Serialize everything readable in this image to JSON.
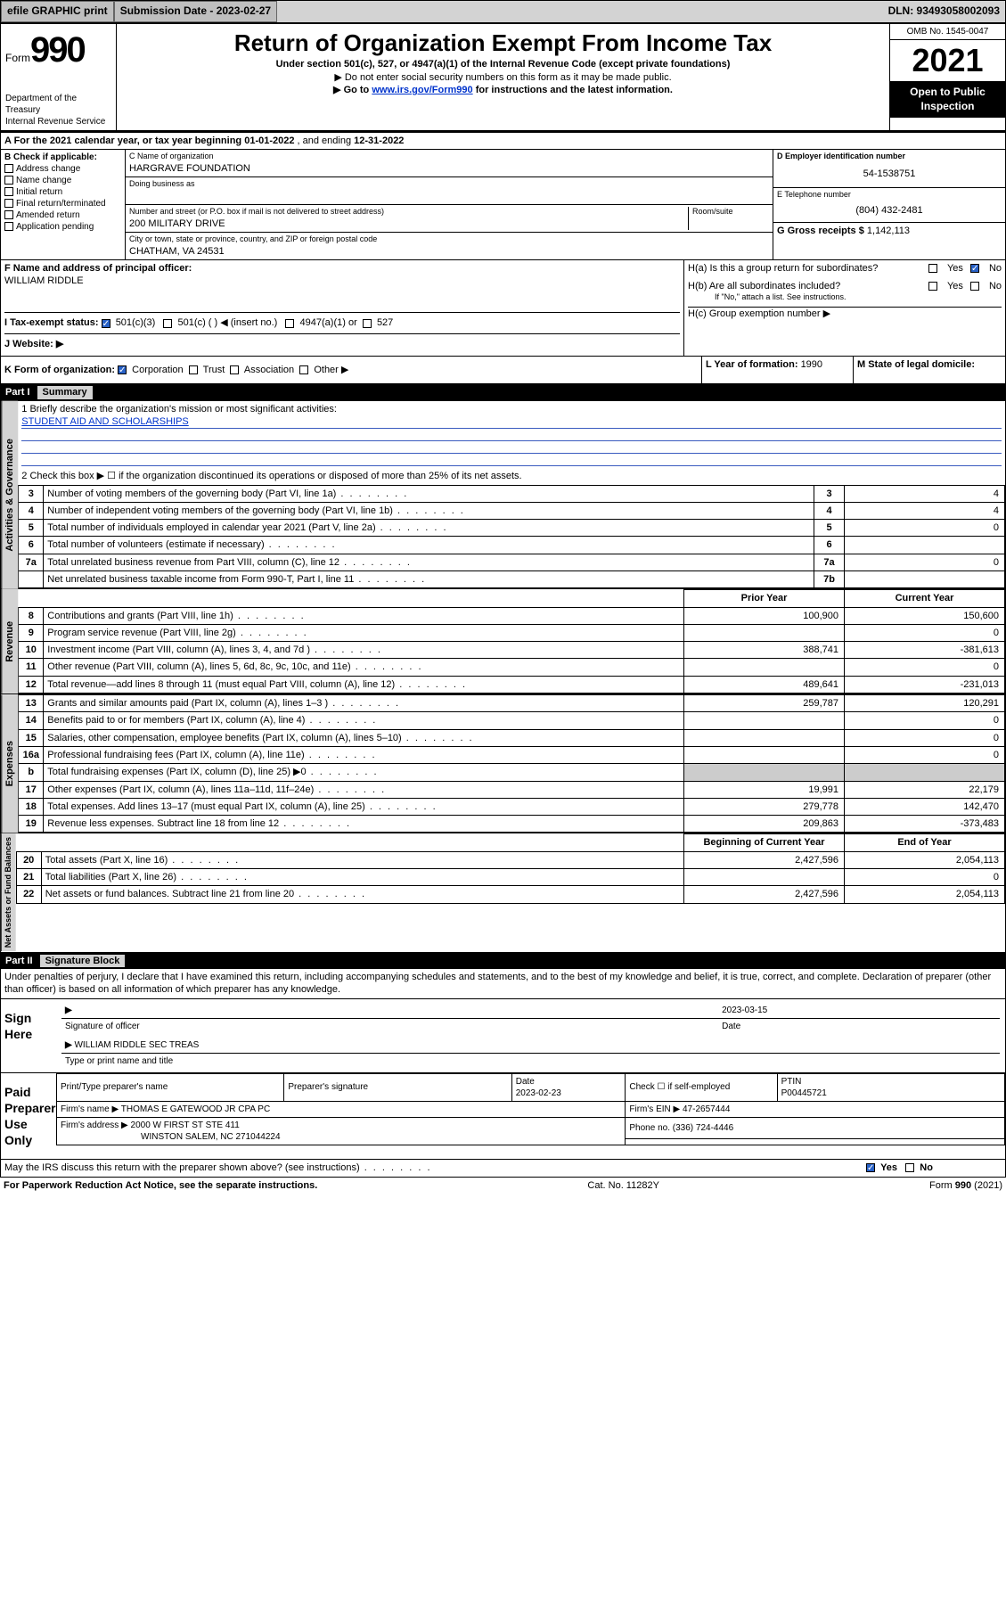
{
  "topbar": {
    "efile": "efile GRAPHIC print",
    "sub_label": "Submission Date - 2023-02-27",
    "dln": "DLN: 93493058002093"
  },
  "header": {
    "form_word": "Form",
    "form_num": "990",
    "dept": "Department of the Treasury",
    "irs": "Internal Revenue Service",
    "title": "Return of Organization Exempt From Income Tax",
    "line1": "Under section 501(c), 527, or 4947(a)(1) of the Internal Revenue Code (except private foundations)",
    "line2": "▶ Do not enter social security numbers on this form as it may be made public.",
    "line3a": "▶ Go to ",
    "line3_link": "www.irs.gov/Form990",
    "line3b": " for instructions and the latest information.",
    "omb": "OMB No. 1545-0047",
    "year": "2021",
    "open": "Open to Public Inspection"
  },
  "period": {
    "text_a": "A For the 2021 calendar year, or tax year beginning ",
    "begin": "01-01-2022",
    "mid": " , and ending ",
    "end": "12-31-2022"
  },
  "boxB": {
    "label": "B Check if applicable:",
    "opts": [
      "Address change",
      "Name change",
      "Initial return",
      "Final return/terminated",
      "Amended return",
      "Application pending"
    ]
  },
  "boxC": {
    "name_label": "C Name of organization",
    "name": "HARGRAVE FOUNDATION",
    "dba_label": "Doing business as",
    "addr_label": "Number and street (or P.O. box if mail is not delivered to street address)",
    "room_label": "Room/suite",
    "addr": "200 MILITARY DRIVE",
    "city_label": "City or town, state or province, country, and ZIP or foreign postal code",
    "city": "CHATHAM, VA  24531"
  },
  "boxD": {
    "label": "D Employer identification number",
    "val": "54-1538751"
  },
  "boxE": {
    "label": "E Telephone number",
    "val": "(804) 432-2481"
  },
  "boxG": {
    "label": "G Gross receipts $",
    "val": "1,142,113"
  },
  "boxF": {
    "label": "F  Name and address of principal officer:",
    "name": "WILLIAM RIDDLE"
  },
  "boxH": {
    "ha": "H(a)  Is this a group return for subordinates?",
    "hb": "H(b)  Are all subordinates included?",
    "hb_note": "If \"No,\" attach a list. See instructions.",
    "hc": "H(c)  Group exemption number ▶",
    "yes": "Yes",
    "no": "No"
  },
  "boxI": {
    "label": "I    Tax-exempt status:",
    "o1": "501(c)(3)",
    "o2": "501(c) (  ) ◀ (insert no.)",
    "o3": "4947(a)(1) or",
    "o4": "527"
  },
  "boxJ": {
    "label": "J    Website: ▶"
  },
  "boxK": {
    "label": "K Form of organization:",
    "o1": "Corporation",
    "o2": "Trust",
    "o3": "Association",
    "o4": "Other ▶"
  },
  "boxL": {
    "label": "L Year of formation: ",
    "val": "1990"
  },
  "boxM": {
    "label": "M State of legal domicile:"
  },
  "part1": {
    "hdr_part": "Part I",
    "hdr_title": "Summary",
    "tab_ag": "Activities & Governance",
    "tab_rev": "Revenue",
    "tab_exp": "Expenses",
    "tab_na": "Net Assets or Fund Balances",
    "q1": "1   Briefly describe the organization's mission or most significant activities:",
    "q1_ans": "STUDENT AID AND SCHOLARSHIPS",
    "q2": "2   Check this box ▶ ☐  if the organization discontinued its operations or disposed of more than 25% of its net assets.",
    "rows_gov": [
      {
        "n": "3",
        "txt": "Number of voting members of the governing body (Part VI, line 1a)",
        "box": "3",
        "val": "4"
      },
      {
        "n": "4",
        "txt": "Number of independent voting members of the governing body (Part VI, line 1b)",
        "box": "4",
        "val": "4"
      },
      {
        "n": "5",
        "txt": "Total number of individuals employed in calendar year 2021 (Part V, line 2a)",
        "box": "5",
        "val": "0"
      },
      {
        "n": "6",
        "txt": "Total number of volunteers (estimate if necessary)",
        "box": "6",
        "val": ""
      },
      {
        "n": "7a",
        "txt": "Total unrelated business revenue from Part VIII, column (C), line 12",
        "box": "7a",
        "val": "0"
      },
      {
        "n": "",
        "txt": "Net unrelated business taxable income from Form 990-T, Part I, line 11",
        "box": "7b",
        "val": ""
      }
    ],
    "col_prior": "Prior Year",
    "col_curr": "Current Year",
    "rows_rev": [
      {
        "n": "8",
        "txt": "Contributions and grants (Part VIII, line 1h)",
        "p": "100,900",
        "c": "150,600"
      },
      {
        "n": "9",
        "txt": "Program service revenue (Part VIII, line 2g)",
        "p": "",
        "c": "0"
      },
      {
        "n": "10",
        "txt": "Investment income (Part VIII, column (A), lines 3, 4, and 7d )",
        "p": "388,741",
        "c": "-381,613"
      },
      {
        "n": "11",
        "txt": "Other revenue (Part VIII, column (A), lines 5, 6d, 8c, 9c, 10c, and 11e)",
        "p": "",
        "c": "0"
      },
      {
        "n": "12",
        "txt": "Total revenue—add lines 8 through 11 (must equal Part VIII, column (A), line 12)",
        "p": "489,641",
        "c": "-231,013"
      }
    ],
    "rows_exp": [
      {
        "n": "13",
        "txt": "Grants and similar amounts paid (Part IX, column (A), lines 1–3 )",
        "p": "259,787",
        "c": "120,291"
      },
      {
        "n": "14",
        "txt": "Benefits paid to or for members (Part IX, column (A), line 4)",
        "p": "",
        "c": "0"
      },
      {
        "n": "15",
        "txt": "Salaries, other compensation, employee benefits (Part IX, column (A), lines 5–10)",
        "p": "",
        "c": "0"
      },
      {
        "n": "16a",
        "txt": "Professional fundraising fees (Part IX, column (A), line 11e)",
        "p": "",
        "c": "0"
      },
      {
        "n": "b",
        "txt": "Total fundraising expenses (Part IX, column (D), line 25) ▶0",
        "p": "shade",
        "c": "shade"
      },
      {
        "n": "17",
        "txt": "Other expenses (Part IX, column (A), lines 11a–11d, 11f–24e)",
        "p": "19,991",
        "c": "22,179"
      },
      {
        "n": "18",
        "txt": "Total expenses. Add lines 13–17 (must equal Part IX, column (A), line 25)",
        "p": "279,778",
        "c": "142,470"
      },
      {
        "n": "19",
        "txt": "Revenue less expenses. Subtract line 18 from line 12",
        "p": "209,863",
        "c": "-373,483"
      }
    ],
    "col_boy": "Beginning of Current Year",
    "col_eoy": "End of Year",
    "rows_na": [
      {
        "n": "20",
        "txt": "Total assets (Part X, line 16)",
        "p": "2,427,596",
        "c": "2,054,113"
      },
      {
        "n": "21",
        "txt": "Total liabilities (Part X, line 26)",
        "p": "",
        "c": "0"
      },
      {
        "n": "22",
        "txt": "Net assets or fund balances. Subtract line 21 from line 20",
        "p": "2,427,596",
        "c": "2,054,113"
      }
    ]
  },
  "part2": {
    "hdr_part": "Part II",
    "hdr_title": "Signature Block",
    "decl": "Under penalties of perjury, I declare that I have examined this return, including accompanying schedules and statements, and to the best of my knowledge and belief, it is true, correct, and complete. Declaration of preparer (other than officer) is based on all information of which preparer has any knowledge.",
    "sign_here": "Sign Here",
    "sig_officer": "Signature of officer",
    "sig_date": "2023-03-15",
    "date_label": "Date",
    "officer_name": "WILLIAM RIDDLE  SEC TREAS",
    "type_name": "Type or print name and title",
    "paid": "Paid Preparer Use Only",
    "pp_name_label": "Print/Type preparer's name",
    "pp_sig_label": "Preparer's signature",
    "pp_date_label": "Date",
    "pp_date": "2023-02-23",
    "pp_check": "Check ☐ if self-employed",
    "ptin_label": "PTIN",
    "ptin": "P00445721",
    "firm_name_label": "Firm's name    ▶",
    "firm_name": "THOMAS E GATEWOOD JR CPA PC",
    "firm_ein_label": "Firm's EIN ▶",
    "firm_ein": "47-2657444",
    "firm_addr_label": "Firm's address ▶",
    "firm_addr1": "2000 W FIRST ST STE 411",
    "firm_addr2": "WINSTON SALEM, NC  271044224",
    "phone_label": "Phone no.",
    "phone": "(336) 724-4446",
    "discuss": "May the IRS discuss this return with the preparer shown above? (see instructions)",
    "yes": "Yes",
    "no": "No"
  },
  "footer": {
    "pra": "For Paperwork Reduction Act Notice, see the separate instructions.",
    "cat": "Cat. No. 11282Y",
    "form": "Form 990 (2021)"
  },
  "colors": {
    "link": "#0033cc",
    "shade": "#cccccc",
    "underline": "#3a5bbf"
  }
}
